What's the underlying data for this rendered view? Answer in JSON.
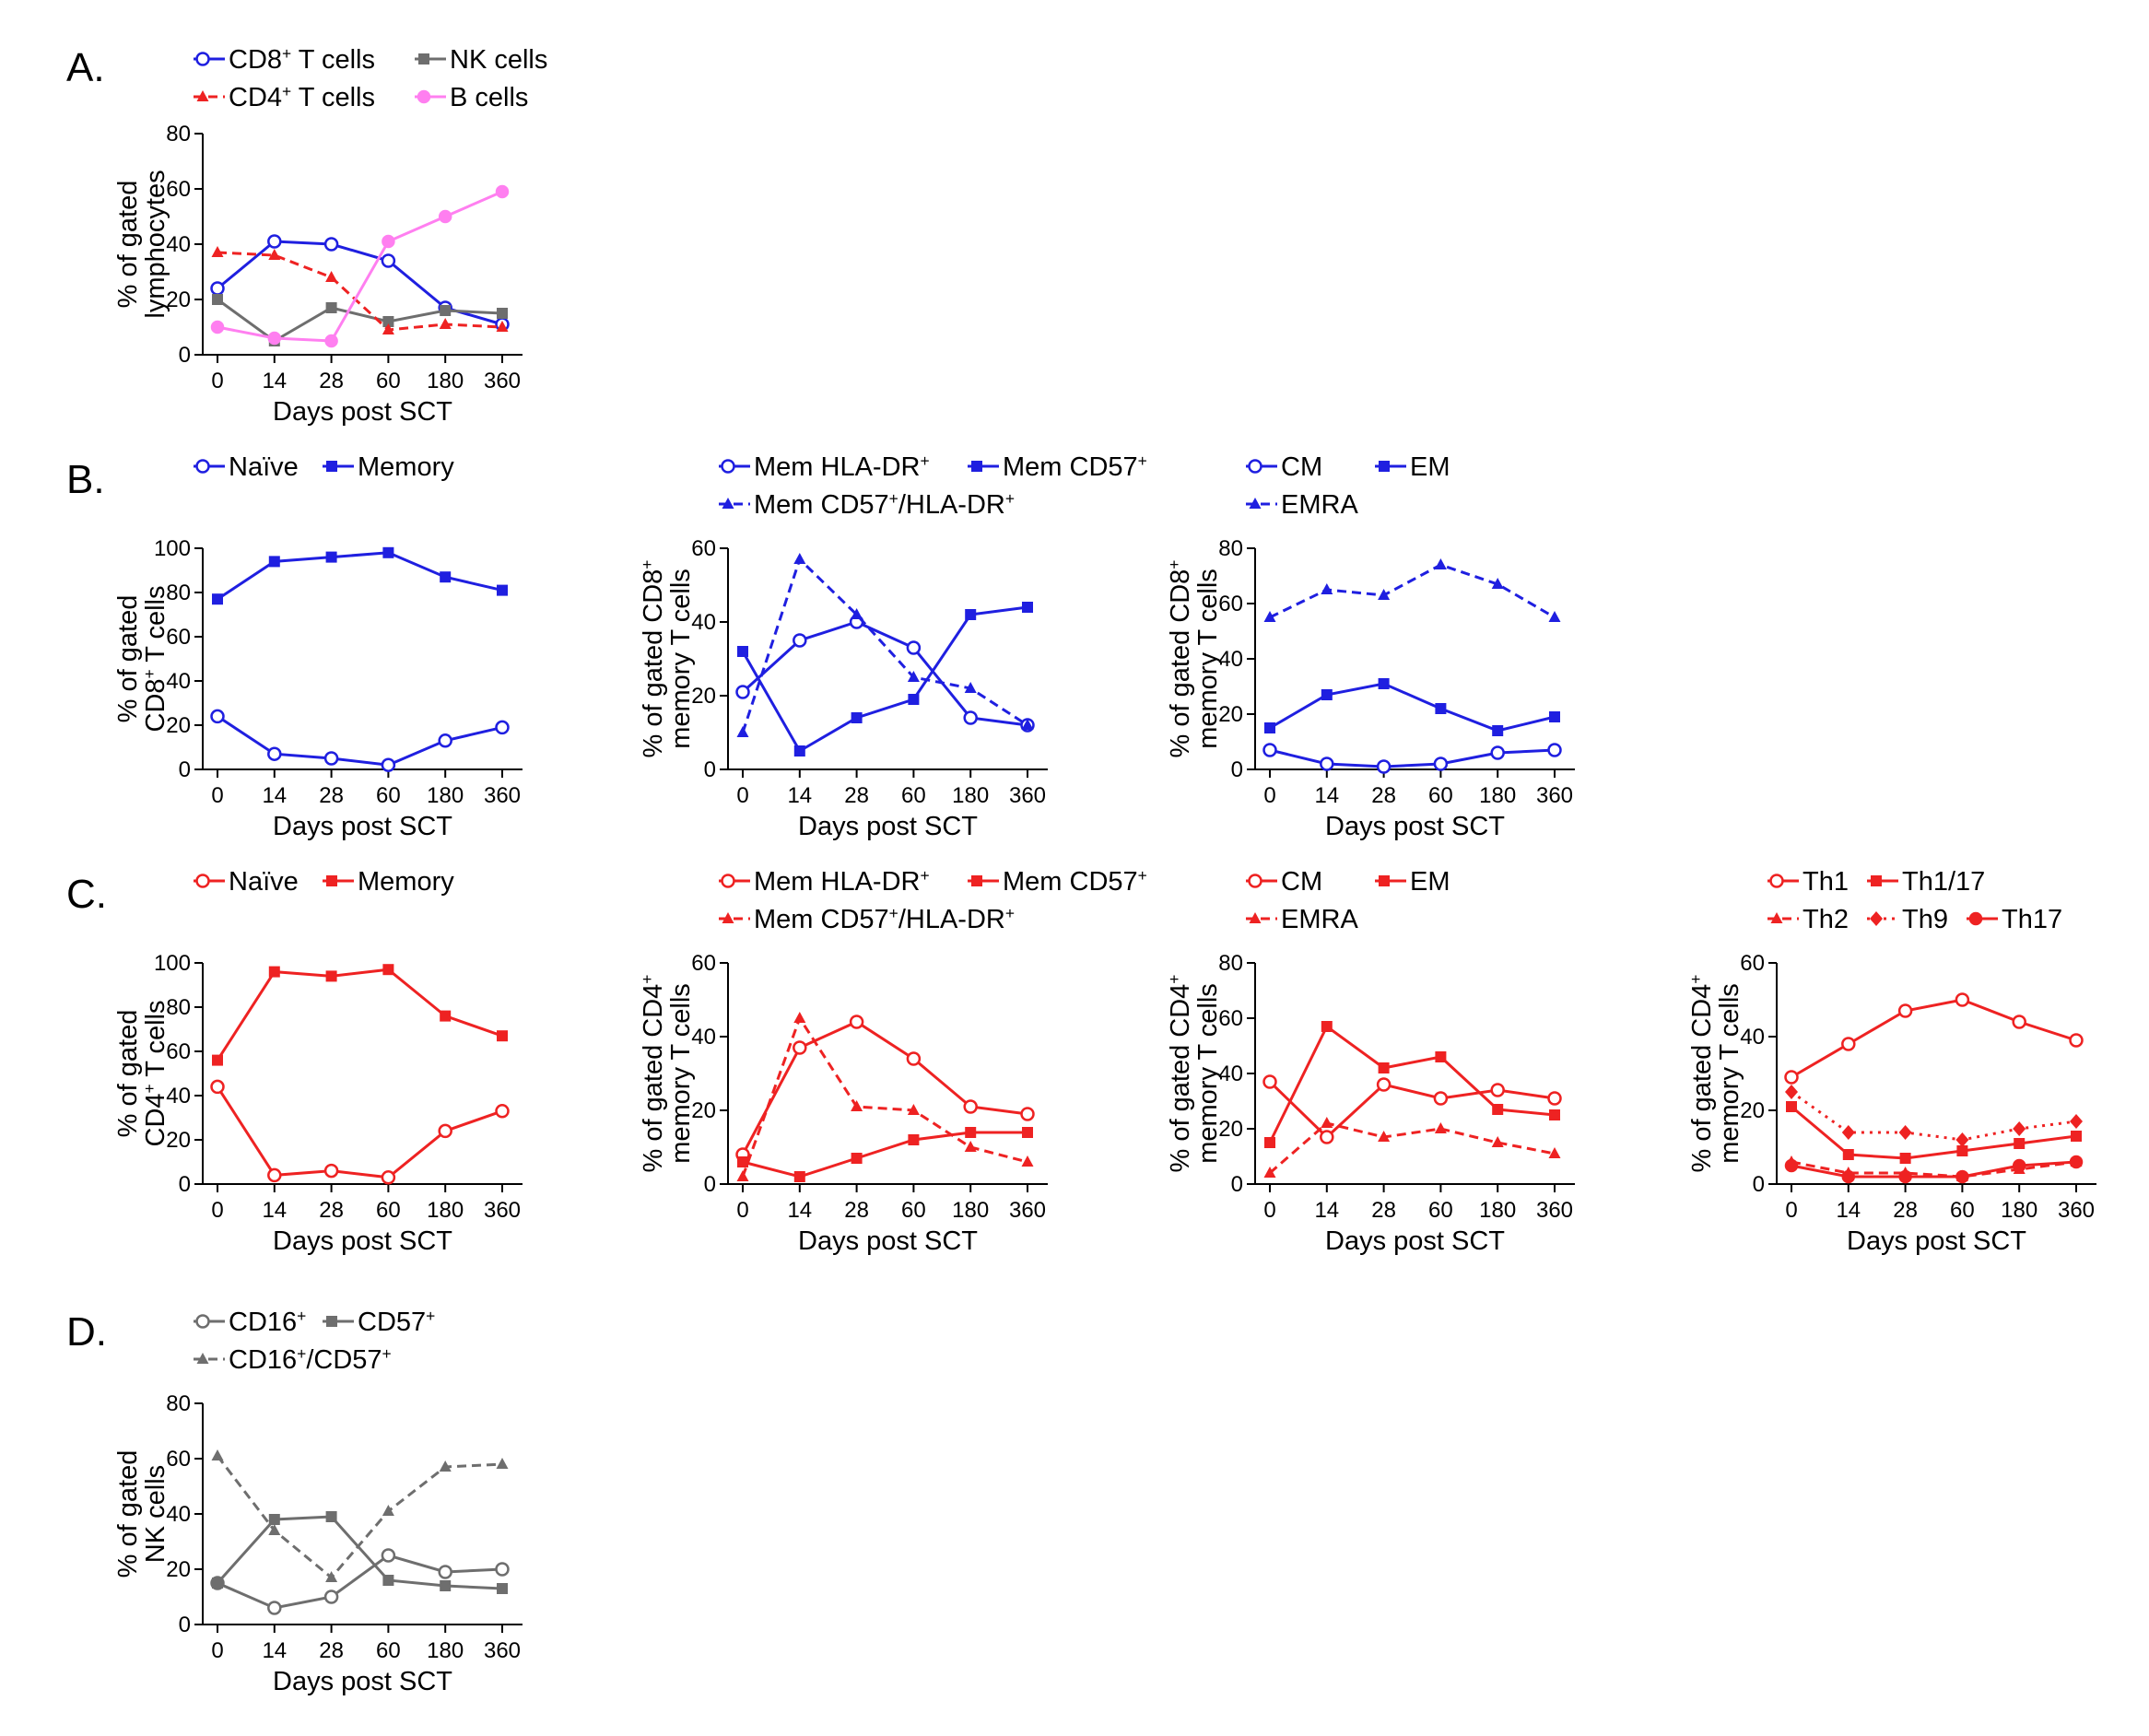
{
  "figure": {
    "x_categories": [
      "0",
      "14",
      "28",
      "60",
      "180",
      "360"
    ],
    "xlabel": "Days post SCT",
    "panel_labels": [
      "A.",
      "B.",
      "C.",
      "D."
    ]
  },
  "chart_data": [
    {
      "id": "A1",
      "panel": "A.",
      "type": "line",
      "ylabel": [
        "% of gated",
        "lymphocytes"
      ],
      "ylim": [
        0,
        80
      ],
      "yticks": [
        0,
        20,
        40,
        60,
        80
      ],
      "legend_rows": [
        [
          "CD8+ T cells",
          "NK cells"
        ],
        [
          "CD4+ T cells",
          "B cells"
        ]
      ],
      "series": [
        {
          "name": "CD8+ T cells",
          "color": "#1f1fe0",
          "marker": "circle-open",
          "dash": "solid",
          "values": [
            24,
            41,
            40,
            34,
            17,
            11
          ]
        },
        {
          "name": "NK cells",
          "color": "#6e6e6e",
          "marker": "square",
          "dash": "solid",
          "values": [
            20,
            5,
            17,
            12,
            16,
            15
          ]
        },
        {
          "name": "CD4+ T cells",
          "color": "#ee2222",
          "marker": "triangle",
          "dash": "dashed",
          "values": [
            37,
            36,
            28,
            9,
            11,
            10
          ]
        },
        {
          "name": "B cells",
          "color": "#ff7ff0",
          "marker": "circle",
          "dash": "solid",
          "values": [
            10,
            6,
            5,
            41,
            50,
            59
          ]
        }
      ]
    },
    {
      "id": "B1",
      "panel": "B.",
      "type": "line",
      "ylabel": [
        "% of gated",
        "CD8+ T cells"
      ],
      "ylim": [
        0,
        100
      ],
      "yticks": [
        0,
        20,
        40,
        60,
        80,
        100
      ],
      "legend_rows": [
        [
          "Naïve",
          "Memory"
        ]
      ],
      "series": [
        {
          "name": "Naïve",
          "color": "#1f1fe0",
          "marker": "circle-open",
          "dash": "solid",
          "values": [
            24,
            7,
            5,
            2,
            13,
            19
          ]
        },
        {
          "name": "Memory",
          "color": "#1f1fe0",
          "marker": "square",
          "dash": "solid",
          "values": [
            77,
            94,
            96,
            98,
            87,
            81
          ]
        }
      ]
    },
    {
      "id": "B2",
      "panel": "",
      "type": "line",
      "ylabel": [
        "% of gated CD8+",
        "memory T cells"
      ],
      "ylim": [
        0,
        60
      ],
      "yticks": [
        0,
        20,
        40,
        60
      ],
      "legend_rows": [
        [
          "Mem HLA-DR+",
          "Mem CD57+"
        ],
        [
          "Mem CD57+/HLA-DR+"
        ]
      ],
      "series": [
        {
          "name": "Mem HLA-DR+",
          "color": "#1f1fe0",
          "marker": "circle-open",
          "dash": "solid",
          "values": [
            21,
            35,
            40,
            33,
            14,
            12
          ]
        },
        {
          "name": "Mem CD57+",
          "color": "#1f1fe0",
          "marker": "square",
          "dash": "solid",
          "values": [
            32,
            5,
            14,
            19,
            42,
            44
          ]
        },
        {
          "name": "Mem CD57+/HLA-DR+",
          "color": "#1f1fe0",
          "marker": "triangle",
          "dash": "dashed",
          "values": [
            10,
            57,
            42,
            25,
            22,
            12
          ]
        }
      ]
    },
    {
      "id": "B3",
      "panel": "",
      "type": "line",
      "ylabel": [
        "% of gated CD8+",
        "memory T cells"
      ],
      "ylim": [
        0,
        80
      ],
      "yticks": [
        0,
        20,
        40,
        60,
        80
      ],
      "legend_rows": [
        [
          "CM",
          "EM"
        ],
        [
          "EMRA"
        ]
      ],
      "series": [
        {
          "name": "CM",
          "color": "#1f1fe0",
          "marker": "circle-open",
          "dash": "solid",
          "values": [
            7,
            2,
            1,
            2,
            6,
            7
          ]
        },
        {
          "name": "EM",
          "color": "#1f1fe0",
          "marker": "square",
          "dash": "solid",
          "values": [
            15,
            27,
            31,
            22,
            14,
            19
          ]
        },
        {
          "name": "EMRA",
          "color": "#1f1fe0",
          "marker": "triangle",
          "dash": "dashed",
          "values": [
            55,
            65,
            63,
            74,
            67,
            55
          ]
        }
      ]
    },
    {
      "id": "C1",
      "panel": "C.",
      "type": "line",
      "ylabel": [
        "% of gated",
        "CD4+ T cells"
      ],
      "ylim": [
        0,
        100
      ],
      "yticks": [
        0,
        20,
        40,
        60,
        80,
        100
      ],
      "legend_rows": [
        [
          "Naïve",
          "Memory"
        ]
      ],
      "series": [
        {
          "name": "Naïve",
          "color": "#ee2222",
          "marker": "circle-open",
          "dash": "solid",
          "values": [
            44,
            4,
            6,
            3,
            24,
            33
          ]
        },
        {
          "name": "Memory",
          "color": "#ee2222",
          "marker": "square",
          "dash": "solid",
          "values": [
            56,
            96,
            94,
            97,
            76,
            67
          ]
        }
      ]
    },
    {
      "id": "C2",
      "panel": "",
      "type": "line",
      "ylabel": [
        "% of gated CD4+",
        "memory T cells"
      ],
      "ylim": [
        0,
        60
      ],
      "yticks": [
        0,
        20,
        40,
        60
      ],
      "legend_rows": [
        [
          "Mem HLA-DR+",
          "Mem CD57+"
        ],
        [
          "Mem CD57+/HLA-DR+"
        ]
      ],
      "series": [
        {
          "name": "Mem HLA-DR+",
          "color": "#ee2222",
          "marker": "circle-open",
          "dash": "solid",
          "values": [
            8,
            37,
            44,
            34,
            21,
            19
          ]
        },
        {
          "name": "Mem CD57+",
          "color": "#ee2222",
          "marker": "square",
          "dash": "solid",
          "values": [
            6,
            2,
            7,
            12,
            14,
            14
          ]
        },
        {
          "name": "Mem CD57+/HLA-DR+",
          "color": "#ee2222",
          "marker": "triangle",
          "dash": "dashed",
          "values": [
            2,
            45,
            21,
            20,
            10,
            6
          ]
        }
      ]
    },
    {
      "id": "C3",
      "panel": "",
      "type": "line",
      "ylabel": [
        "% of gated CD4+",
        "memory T cells"
      ],
      "ylim": [
        0,
        80
      ],
      "yticks": [
        0,
        20,
        40,
        60,
        80
      ],
      "legend_rows": [
        [
          "CM",
          "EM"
        ],
        [
          "EMRA"
        ]
      ],
      "series": [
        {
          "name": "CM",
          "color": "#ee2222",
          "marker": "circle-open",
          "dash": "solid",
          "values": [
            37,
            17,
            36,
            31,
            34,
            31
          ]
        },
        {
          "name": "EM",
          "color": "#ee2222",
          "marker": "square",
          "dash": "solid",
          "values": [
            15,
            57,
            42,
            46,
            27,
            25
          ]
        },
        {
          "name": "EMRA",
          "color": "#ee2222",
          "marker": "triangle",
          "dash": "dashed",
          "values": [
            4,
            22,
            17,
            20,
            15,
            11
          ]
        }
      ]
    },
    {
      "id": "C4",
      "panel": "",
      "type": "line",
      "ylabel": [
        "% of gated CD4+",
        "memory T cells"
      ],
      "ylim": [
        0,
        60
      ],
      "yticks": [
        0,
        20,
        40,
        60
      ],
      "legend_rows": [
        [
          "Th1",
          "Th1/17"
        ],
        [
          "Th2",
          "Th9",
          "Th17"
        ]
      ],
      "series": [
        {
          "name": "Th1",
          "color": "#ee2222",
          "marker": "circle-open",
          "dash": "solid",
          "values": [
            29,
            38,
            47,
            50,
            44,
            39
          ]
        },
        {
          "name": "Th1/17",
          "color": "#ee2222",
          "marker": "square",
          "dash": "solid",
          "values": [
            21,
            8,
            7,
            9,
            11,
            13
          ]
        },
        {
          "name": "Th2",
          "color": "#ee2222",
          "marker": "triangle",
          "dash": "dashed",
          "values": [
            6,
            3,
            3,
            2,
            4,
            6
          ]
        },
        {
          "name": "Th9",
          "color": "#ee2222",
          "marker": "diamond",
          "dash": "dotted",
          "values": [
            25,
            14,
            14,
            12,
            15,
            17
          ]
        },
        {
          "name": "Th17",
          "color": "#ee2222",
          "marker": "circle",
          "dash": "solid",
          "values": [
            5,
            2,
            2,
            2,
            5,
            6
          ]
        }
      ]
    },
    {
      "id": "D1",
      "panel": "D.",
      "type": "line",
      "ylabel": [
        "% of gated",
        "NK cells"
      ],
      "ylim": [
        0,
        80
      ],
      "yticks": [
        0,
        20,
        40,
        60,
        80
      ],
      "legend_rows": [
        [
          "CD16+",
          "CD57+"
        ],
        [
          "CD16+/CD57+"
        ]
      ],
      "series": [
        {
          "name": "CD16+",
          "color": "#6e6e6e",
          "marker": "circle-open",
          "dash": "solid",
          "values": [
            15,
            6,
            10,
            25,
            19,
            20
          ]
        },
        {
          "name": "CD57+",
          "color": "#6e6e6e",
          "marker": "square",
          "dash": "solid",
          "values": [
            15,
            38,
            39,
            16,
            14,
            13
          ]
        },
        {
          "name": "CD16+/CD57+",
          "color": "#6e6e6e",
          "marker": "triangle",
          "dash": "dashed",
          "values": [
            61,
            34,
            17,
            41,
            57,
            58
          ]
        }
      ]
    }
  ]
}
